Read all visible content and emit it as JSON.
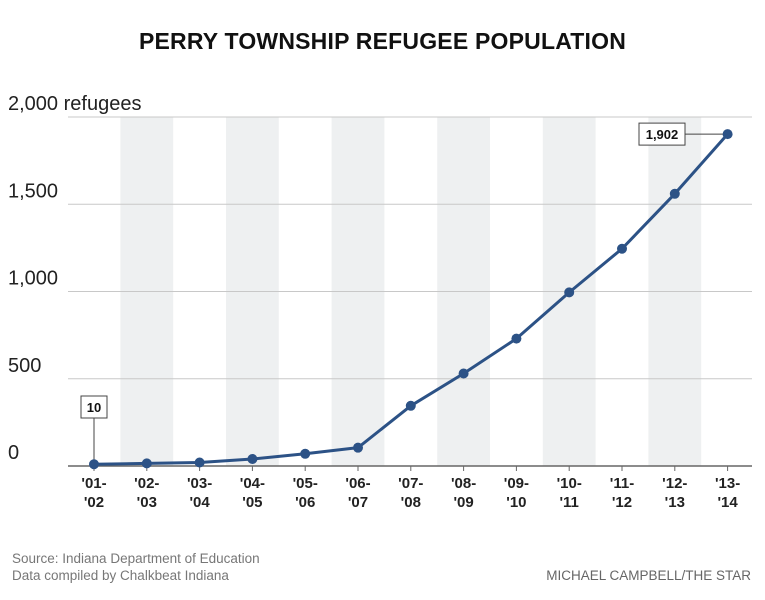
{
  "title": "PERRY TOWNSHIP REFUGEE POPULATION",
  "colors": {
    "line": "#2c5286",
    "stripe": "#eef0f1",
    "grid": "#c8c8c8",
    "axis": "#666666"
  },
  "chart_data": {
    "type": "line",
    "title": "PERRY TOWNSHIP REFUGEE POPULATION",
    "ylabel": "",
    "xlabel": "",
    "ylim": [
      0,
      2000
    ],
    "yticks": [
      {
        "value": 0,
        "label": "0"
      },
      {
        "value": 500,
        "label": "500"
      },
      {
        "value": 1000,
        "label": "1,000"
      },
      {
        "value": 1500,
        "label": "1,500"
      },
      {
        "value": 2000,
        "label": "2,000 refugees"
      }
    ],
    "grid": true,
    "categories": [
      [
        "'01-",
        "'02"
      ],
      [
        "'02-",
        "'03"
      ],
      [
        "'03-",
        "'04"
      ],
      [
        "'04-",
        "'05"
      ],
      [
        "'05-",
        "'06"
      ],
      [
        "'06-",
        "'07"
      ],
      [
        "'07-",
        "'08"
      ],
      [
        "'08-",
        "'09"
      ],
      [
        "'09-",
        "'10"
      ],
      [
        "'10-",
        "'11"
      ],
      [
        "'11-",
        "'12"
      ],
      [
        "'12-",
        "'13"
      ],
      [
        "'13-",
        "'14"
      ]
    ],
    "values": [
      10,
      15,
      20,
      40,
      70,
      105,
      345,
      530,
      730,
      995,
      1245,
      1560,
      1902
    ],
    "annotations": [
      {
        "index": 0,
        "label": "10"
      },
      {
        "index": 12,
        "label": "1,902"
      }
    ]
  },
  "footer": {
    "source": "Source: Indiana Department of Education",
    "compiled": "Data compiled by Chalkbeat Indiana",
    "credit": "MICHAEL CAMPBELL/THE STAR"
  }
}
